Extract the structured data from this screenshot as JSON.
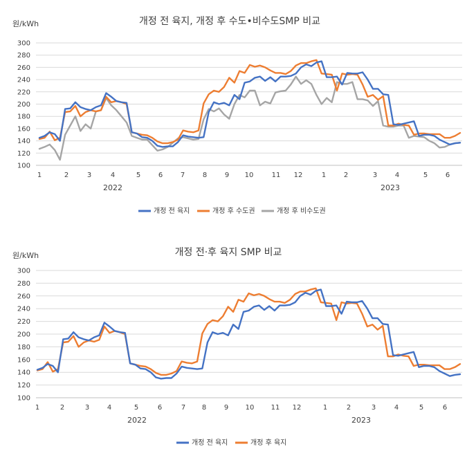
{
  "chart_data": [
    {
      "type": "line",
      "title": "개정 전 육지, 개정 후 수도•비수도SMP 비교",
      "ylabel": "원/kWh",
      "ylim": [
        100,
        300
      ],
      "yticks": [
        "100",
        "120",
        "140",
        "160",
        "180",
        "200",
        "220",
        "240",
        "260",
        "280",
        "300"
      ],
      "month_labels": [
        "1",
        "2",
        "3",
        "4",
        "5",
        "6",
        "7",
        "8",
        "9",
        "10",
        "11",
        "12",
        "1",
        "2",
        "3",
        "4",
        "5",
        "6"
      ],
      "year_labels": [
        "2022",
        "2023"
      ],
      "grid": true,
      "legend": "bottom",
      "series": [
        {
          "name": "개정 전 육지",
          "color": "#4472c4",
          "values": [
            145,
            148,
            154,
            151,
            140,
            192,
            193,
            203,
            195,
            192,
            190,
            195,
            198,
            218,
            212,
            205,
            203,
            202,
            154,
            152,
            146,
            145,
            140,
            132,
            130,
            131,
            131,
            138,
            149,
            147,
            146,
            145,
            146,
            187,
            203,
            200,
            202,
            198,
            215,
            208,
            235,
            237,
            243,
            245,
            238,
            244,
            237,
            245,
            245,
            246,
            250,
            260,
            265,
            262,
            268,
            270,
            244,
            244,
            245,
            232,
            251,
            250,
            250,
            252,
            240,
            225,
            225,
            216,
            215,
            167,
            166,
            168,
            170,
            172,
            148,
            150,
            150,
            148,
            142,
            138,
            134,
            136,
            137
          ]
        },
        {
          "name": "개정 후 수도권",
          "color": "#ed7d31",
          "values": [
            143,
            145,
            155,
            141,
            145,
            187,
            188,
            197,
            180,
            187,
            190,
            188,
            190,
            212,
            203,
            205,
            203,
            200,
            154,
            152,
            150,
            149,
            145,
            139,
            136,
            136,
            138,
            142,
            157,
            155,
            154,
            157,
            201,
            216,
            222,
            220,
            228,
            243,
            235,
            254,
            251,
            264,
            261,
            263,
            260,
            255,
            251,
            251,
            249,
            254,
            263,
            267,
            267,
            270,
            272,
            250,
            249,
            248,
            222,
            250,
            248,
            249,
            248,
            232,
            212,
            215,
            207,
            213,
            165,
            165,
            168,
            166,
            165,
            150,
            152,
            152,
            151,
            151,
            151,
            145,
            145,
            148,
            153
          ]
        },
        {
          "name": "개정 후 비수도권",
          "color": "#a5a5a5",
          "values": [
            127,
            130,
            134,
            125,
            109,
            150,
            165,
            180,
            156,
            167,
            160,
            188,
            190,
            210,
            198,
            190,
            180,
            170,
            148,
            145,
            142,
            142,
            133,
            124,
            126,
            130,
            137,
            144,
            146,
            144,
            142,
            143,
            175,
            192,
            188,
            193,
            183,
            176,
            200,
            215,
            211,
            222,
            222,
            198,
            204,
            201,
            219,
            221,
            222,
            232,
            245,
            233,
            239,
            233,
            215,
            200,
            210,
            203,
            236,
            233,
            233,
            236,
            208,
            208,
            206,
            197,
            205,
            165,
            163,
            163,
            165,
            165,
            145,
            148,
            147,
            146,
            140,
            136,
            129,
            130,
            134,
            136,
            137
          ]
        }
      ]
    },
    {
      "type": "line",
      "title": "개정 전·후 육지 SMP 비교",
      "ylabel": "원/kWh",
      "ylim": [
        100,
        300
      ],
      "yticks": [
        "100",
        "120",
        "140",
        "160",
        "180",
        "200",
        "220",
        "240",
        "260",
        "280",
        "300"
      ],
      "month_labels": [
        "1",
        "2",
        "3",
        "4",
        "5",
        "6",
        "7",
        "8",
        "9",
        "10",
        "11",
        "12",
        "1",
        "2",
        "3",
        "4",
        "5",
        "6"
      ],
      "year_labels": [
        "2022",
        "2023"
      ],
      "grid": true,
      "legend": "bottom",
      "series": [
        {
          "name": "개정 전 육지",
          "color": "#4472c4",
          "values": [
            144,
            147,
            153,
            150,
            140,
            192,
            193,
            203,
            195,
            192,
            190,
            195,
            198,
            218,
            212,
            205,
            203,
            202,
            154,
            152,
            146,
            145,
            140,
            132,
            130,
            131,
            131,
            138,
            149,
            147,
            146,
            145,
            146,
            187,
            203,
            200,
            202,
            198,
            215,
            208,
            235,
            237,
            243,
            245,
            238,
            244,
            237,
            245,
            245,
            246,
            250,
            260,
            265,
            262,
            268,
            270,
            244,
            244,
            245,
            232,
            251,
            250,
            250,
            252,
            240,
            225,
            225,
            216,
            215,
            167,
            166,
            168,
            170,
            172,
            148,
            150,
            150,
            148,
            142,
            138,
            134,
            136,
            137
          ]
        },
        {
          "name": "개정 후 육지",
          "color": "#ed7d31",
          "values": [
            143,
            145,
            156,
            141,
            145,
            187,
            188,
            197,
            180,
            187,
            190,
            188,
            191,
            212,
            202,
            205,
            203,
            200,
            154,
            152,
            150,
            149,
            145,
            139,
            136,
            136,
            138,
            142,
            157,
            155,
            154,
            157,
            201,
            216,
            222,
            220,
            228,
            243,
            235,
            254,
            251,
            264,
            261,
            263,
            260,
            255,
            251,
            251,
            249,
            254,
            263,
            267,
            267,
            270,
            272,
            250,
            249,
            248,
            222,
            250,
            248,
            249,
            248,
            232,
            212,
            215,
            207,
            213,
            165,
            165,
            168,
            166,
            165,
            150,
            152,
            152,
            151,
            151,
            151,
            145,
            145,
            148,
            153
          ]
        }
      ]
    }
  ]
}
